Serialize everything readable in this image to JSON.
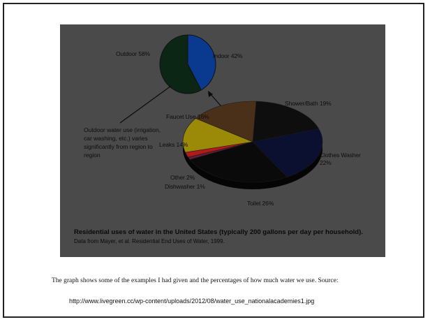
{
  "chart_data": [
    {
      "type": "pie",
      "title": "",
      "categories": [
        "Outdoor",
        "Indoor"
      ],
      "values": [
        58,
        42
      ],
      "labels": [
        "Outdoor 58%",
        "Indoor 42%"
      ],
      "colors": [
        "#0b2614",
        "#0a3a90"
      ]
    },
    {
      "type": "pie",
      "title": "Residential uses of water in the United States (typically 200 gallons per day per household).",
      "subtitle": "Data from Mayer, et al. Residential End Uses of Water, 1999.",
      "categories": [
        "Shower/Bath",
        "Clothes Washer",
        "Toilet",
        "Dishwasher",
        "Other",
        "Leaks",
        "Faucet Use"
      ],
      "values": [
        19,
        22,
        26,
        1,
        2,
        14,
        16
      ],
      "labels": [
        "Shower/Bath 19%",
        "Clothes Washer 22%",
        "Toilet 26%",
        "Dishwasher 1%",
        "Other 2%",
        "Leaks 14%",
        "Faucet Use 16%"
      ],
      "colors": [
        "#0e0e0e",
        "#0c1030",
        "#0a0a0a",
        "#6a1a34",
        "#b01a1a",
        "#9a8a08",
        "#4a3018"
      ]
    }
  ],
  "annotation": "Outdoor water use (irrigation, car washing, etc.) varies significantly from region to region",
  "caption": "The graph shows some of the examples I had given and the percentages of how much water we use. Source:",
  "source_url": "http://www.livegreen.cc/wp-content/uploads/2012/08/water_use_nationalacademies1.jpg"
}
